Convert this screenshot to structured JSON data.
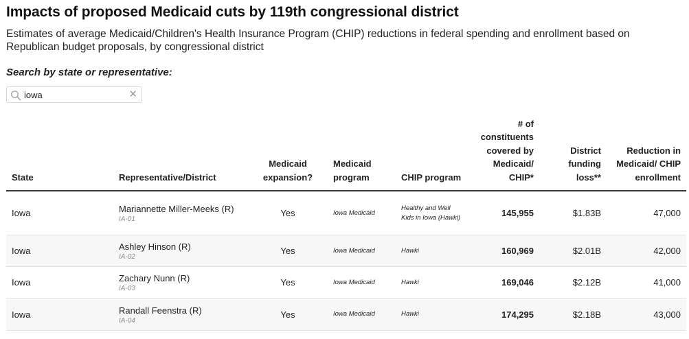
{
  "header": {
    "title": "Impacts of proposed Medicaid cuts by 119th congressional district",
    "subtitle": "Estimates of average Medicaid/Children's Health Insurance Program (CHIP) reductions in federal spending and enrollment based on Republican budget proposals, by congressional district"
  },
  "search": {
    "label": "Search by state or representative:",
    "value": "iowa",
    "placeholder": "",
    "icon": "search-icon",
    "clear_icon": "close-icon"
  },
  "table": {
    "columns": [
      {
        "key": "state",
        "label": "State"
      },
      {
        "key": "rep",
        "label": "Representative/District"
      },
      {
        "key": "expansion",
        "label": "Medicaid expansion?"
      },
      {
        "key": "medicaid_program",
        "label": "Medicaid program"
      },
      {
        "key": "chip_program",
        "label": "CHIP program"
      },
      {
        "key": "constituents",
        "label": "# of constituents covered by Medicaid/ CHIP*"
      },
      {
        "key": "funding_loss",
        "label": "District funding loss**"
      },
      {
        "key": "enrollment",
        "label": "Reduction in Medicaid/ CHIP enrollment"
      }
    ],
    "rows": [
      {
        "state": "Iowa",
        "rep": "Mariannette Miller-Meeks (R)",
        "district": "IA-01",
        "expansion": "Yes",
        "medicaid_program": "Iowa Medicaid",
        "chip_program": "Healthy and Well Kids in Iowa (Hawki)",
        "constituents": "145,955",
        "funding_loss": "$1.83B",
        "enrollment": "47,000"
      },
      {
        "state": "Iowa",
        "rep": "Ashley Hinson (R)",
        "district": "IA-02",
        "expansion": "Yes",
        "medicaid_program": "Iowa Medicaid",
        "chip_program": "Hawki",
        "constituents": "160,969",
        "funding_loss": "$2.01B",
        "enrollment": "42,000"
      },
      {
        "state": "Iowa",
        "rep": "Zachary Nunn (R)",
        "district": "IA-03",
        "expansion": "Yes",
        "medicaid_program": "Iowa Medicaid",
        "chip_program": "Hawki",
        "constituents": "169,046",
        "funding_loss": "$2.12B",
        "enrollment": "41,000"
      },
      {
        "state": "Iowa",
        "rep": "Randall Feenstra (R)",
        "district": "IA-04",
        "expansion": "Yes",
        "medicaid_program": "Iowa Medicaid",
        "chip_program": "Hawki",
        "constituents": "174,295",
        "funding_loss": "$2.18B",
        "enrollment": "43,000"
      }
    ]
  }
}
